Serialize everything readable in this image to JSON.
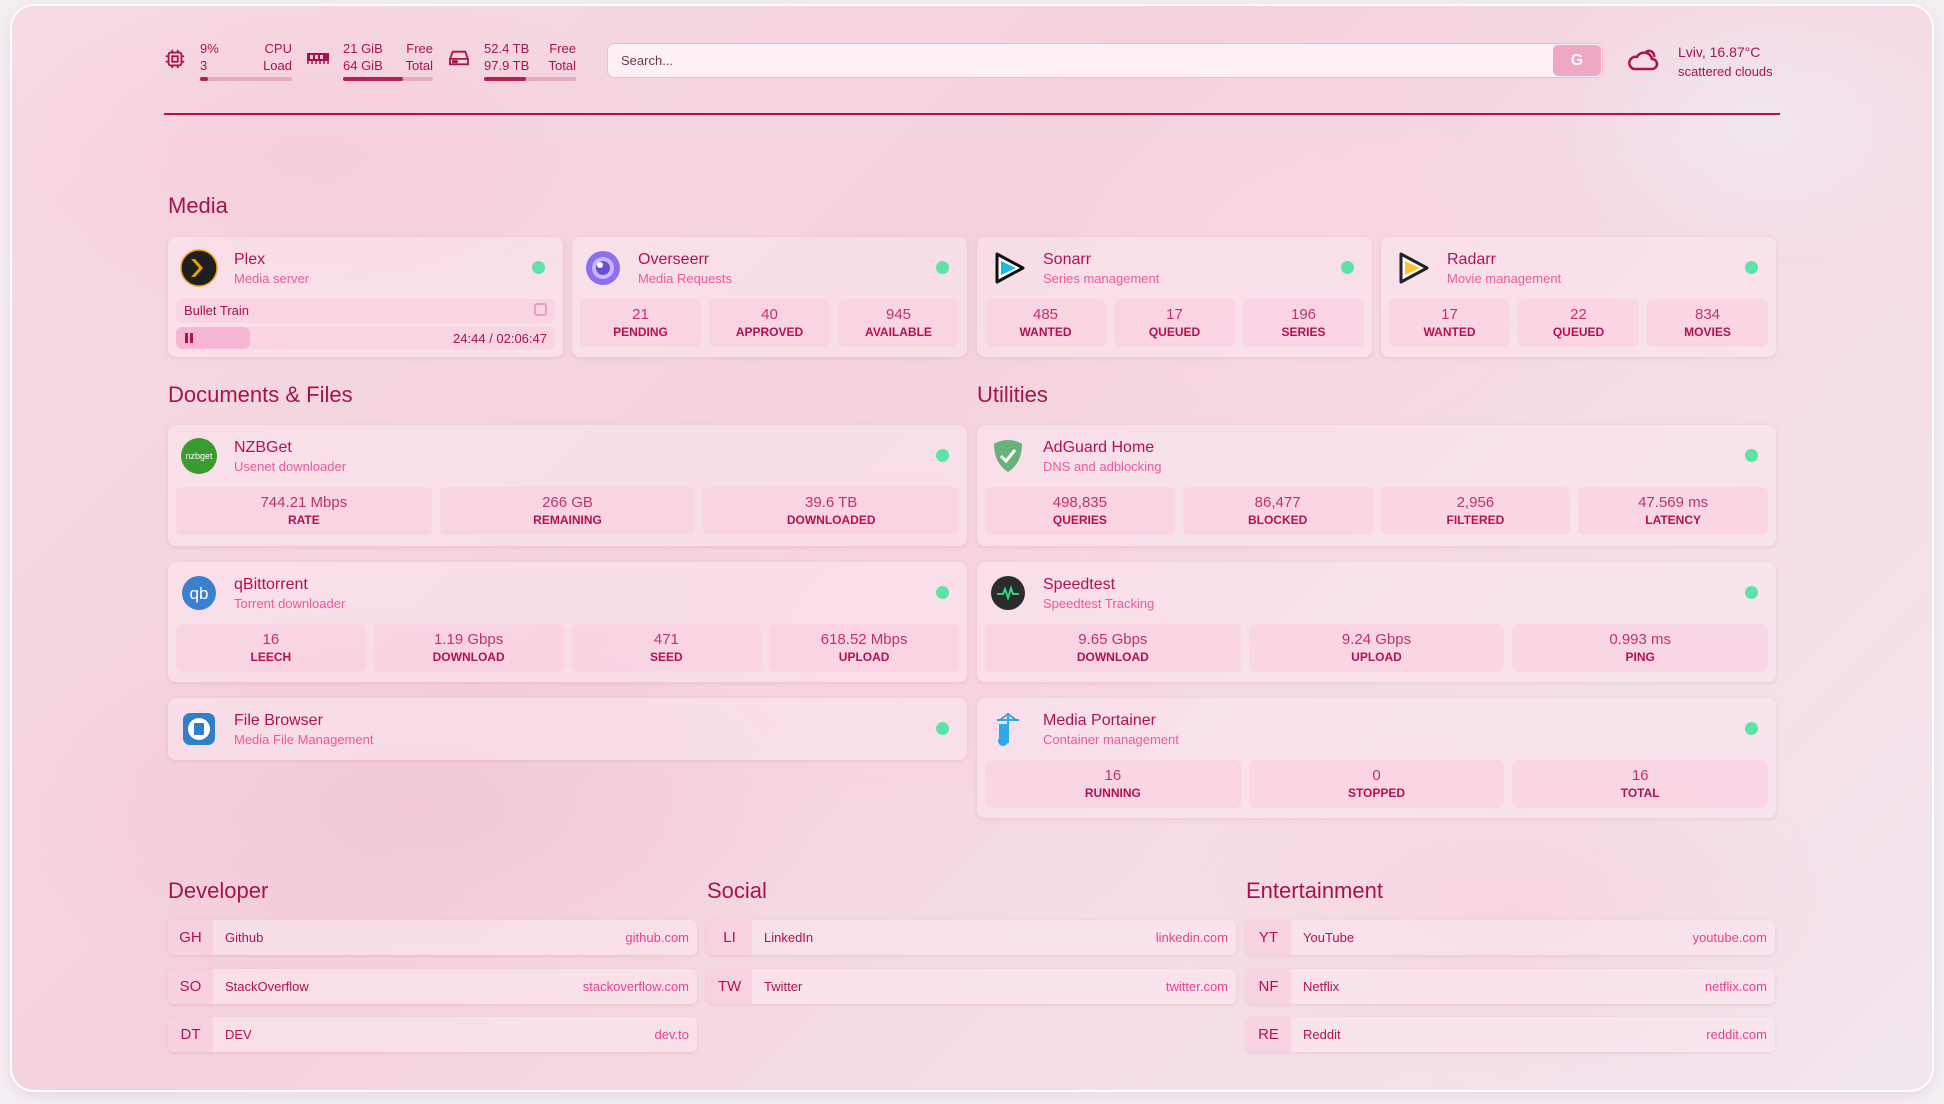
{
  "header": {
    "cpu": {
      "icon": "cpu-icon",
      "load_pct": "9%",
      "cores": "3",
      "label1": "CPU",
      "label2": "Load",
      "fill": 0.09
    },
    "ram": {
      "icon": "memory-icon",
      "free": "21 GiB",
      "total": "64 GiB",
      "label1": "Free",
      "label2": "Total",
      "fill": 0.67
    },
    "disk": {
      "icon": "hard-drive-icon",
      "free": "52.4 TB",
      "total": "97.9 TB",
      "label1": "Free",
      "label2": "Total",
      "fill": 0.46
    },
    "search": {
      "placeholder": "Search...",
      "button": "G"
    },
    "weather": {
      "icon": "cloud-sun-icon",
      "location_temp": "Lviv, 16.87°C",
      "condition": "scattered clouds"
    }
  },
  "colors": {
    "accent": "#b3124e",
    "subtitle": "#ec5a9c",
    "status_ok": "#5de3a6"
  },
  "sections": {
    "media": "Media",
    "documents": "Documents & Files",
    "utilities": "Utilities",
    "developer": "Developer",
    "social": "Social",
    "entertainment": "Entertainment"
  },
  "media": [
    {
      "name": "Plex",
      "desc": "Media server",
      "icon": "plex-icon",
      "now_playing": {
        "title": "Bullet Train",
        "time": "24:44 / 02:06:47",
        "progress": 0.195
      }
    },
    {
      "name": "Overseerr",
      "desc": "Media Requests",
      "icon": "overseerr-icon",
      "stats": [
        {
          "v": "21",
          "l": "PENDING"
        },
        {
          "v": "40",
          "l": "APPROVED"
        },
        {
          "v": "945",
          "l": "AVAILABLE"
        }
      ]
    },
    {
      "name": "Sonarr",
      "desc": "Series management",
      "icon": "sonarr-icon",
      "stats": [
        {
          "v": "485",
          "l": "WANTED"
        },
        {
          "v": "17",
          "l": "QUEUED"
        },
        {
          "v": "196",
          "l": "SERIES"
        }
      ]
    },
    {
      "name": "Radarr",
      "desc": "Movie management",
      "icon": "radarr-icon",
      "stats": [
        {
          "v": "17",
          "l": "WANTED"
        },
        {
          "v": "22",
          "l": "QUEUED"
        },
        {
          "v": "834",
          "l": "MOVIES"
        }
      ]
    }
  ],
  "documents": [
    {
      "name": "NZBGet",
      "desc": "Usenet downloader",
      "icon": "nzbget-icon",
      "stats": [
        {
          "v": "744.21 Mbps",
          "l": "RATE"
        },
        {
          "v": "266 GB",
          "l": "REMAINING"
        },
        {
          "v": "39.6 TB",
          "l": "DOWNLOADED"
        }
      ]
    },
    {
      "name": "qBittorrent",
      "desc": "Torrent downloader",
      "icon": "qbittorrent-icon",
      "stats": [
        {
          "v": "16",
          "l": "LEECH"
        },
        {
          "v": "1.19 Gbps",
          "l": "DOWNLOAD"
        },
        {
          "v": "471",
          "l": "SEED"
        },
        {
          "v": "618.52 Mbps",
          "l": "UPLOAD"
        }
      ]
    },
    {
      "name": "File Browser",
      "desc": "Media File Management",
      "icon": "filebrowser-icon"
    }
  ],
  "utilities": [
    {
      "name": "AdGuard Home",
      "desc": "DNS and adblocking",
      "icon": "adguard-icon",
      "stats": [
        {
          "v": "498,835",
          "l": "QUERIES"
        },
        {
          "v": "86,477",
          "l": "BLOCKED"
        },
        {
          "v": "2,956",
          "l": "FILTERED"
        },
        {
          "v": "47.569 ms",
          "l": "LATENCY"
        }
      ]
    },
    {
      "name": "Speedtest",
      "desc": "Speedtest Tracking",
      "icon": "speedtest-icon",
      "stats": [
        {
          "v": "9.65 Gbps",
          "l": "DOWNLOAD"
        },
        {
          "v": "9.24 Gbps",
          "l": "UPLOAD"
        },
        {
          "v": "0.993 ms",
          "l": "PING"
        }
      ]
    },
    {
      "name": "Media Portainer",
      "desc": "Container management",
      "icon": "portainer-icon",
      "stats": [
        {
          "v": "16",
          "l": "RUNNING"
        },
        {
          "v": "0",
          "l": "STOPPED"
        },
        {
          "v": "16",
          "l": "TOTAL"
        }
      ]
    }
  ],
  "bookmarks": {
    "developer": [
      {
        "abbr": "GH",
        "name": "Github",
        "url": "github.com"
      },
      {
        "abbr": "SO",
        "name": "StackOverflow",
        "url": "stackoverflow.com"
      },
      {
        "abbr": "DT",
        "name": "DEV",
        "url": "dev.to"
      }
    ],
    "social": [
      {
        "abbr": "LI",
        "name": "LinkedIn",
        "url": "linkedin.com"
      },
      {
        "abbr": "TW",
        "name": "Twitter",
        "url": "twitter.com"
      }
    ],
    "entertainment": [
      {
        "abbr": "YT",
        "name": "YouTube",
        "url": "youtube.com"
      },
      {
        "abbr": "NF",
        "name": "Netflix",
        "url": "netflix.com"
      },
      {
        "abbr": "RE",
        "name": "Reddit",
        "url": "reddit.com"
      }
    ]
  }
}
